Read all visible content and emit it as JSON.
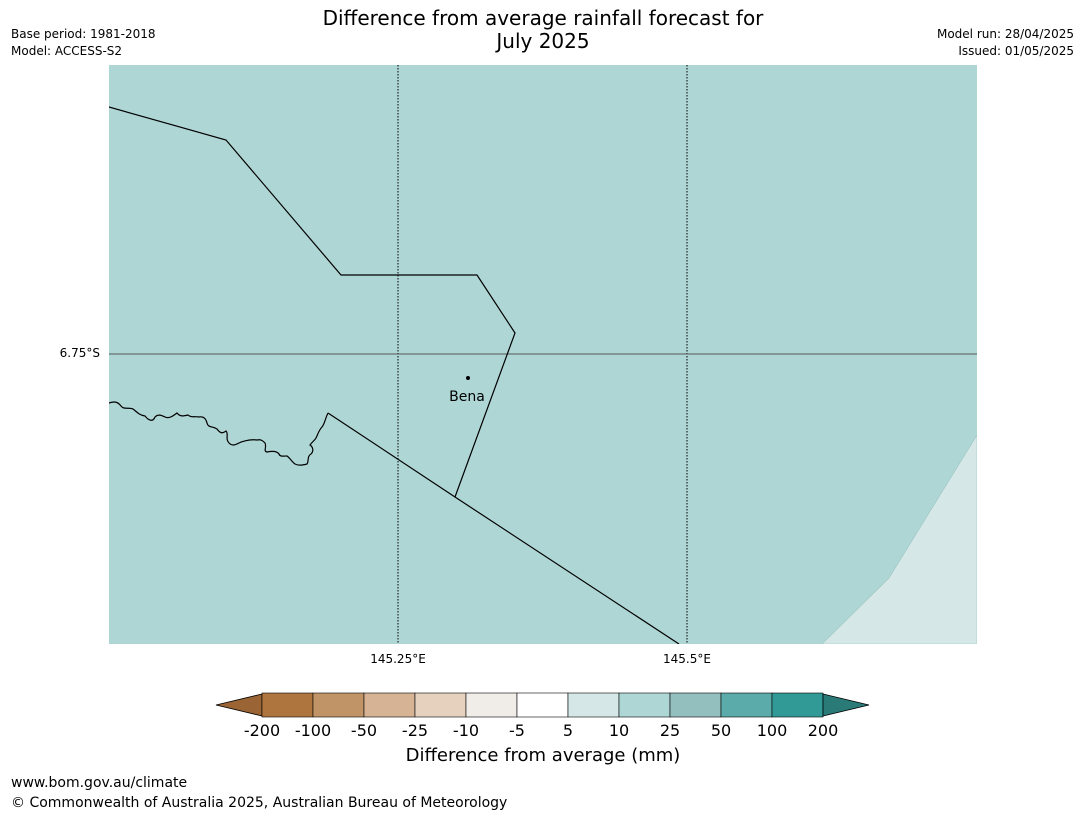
{
  "header": {
    "title_line1": "Difference from average rainfall forecast for",
    "title_line2": "July 2025",
    "base_period": "Base period: 1981-2018",
    "model": "Model: ACCESS-S2",
    "model_run": "Model run: 28/04/2025",
    "issued": "Issued: 01/05/2025"
  },
  "map": {
    "place_label": "Bena",
    "lat_label": "6.75°S",
    "lon_labels": [
      "145.25°E",
      "145.5°E"
    ],
    "fill_colors": {
      "5_to_10": "#d5e8e7",
      "10_to_25": "#aed6d5"
    }
  },
  "colorbar": {
    "label": "Difference from average (mm)",
    "ticks": [
      "-200",
      "-100",
      "-50",
      "-25",
      "-10",
      "-5",
      "5",
      "10",
      "25",
      "50",
      "100",
      "200"
    ],
    "colors": {
      "below_-200": "#9a6434",
      "-200_to_-100": "#ae763e",
      "-100_to_-50": "#c19468",
      "-50_to_-25": "#d5b394",
      "-25_to_-10": "#e6d1bf",
      "-10_to_-5": "#f0ece7",
      "-5_to_5": "#ffffff",
      "5_to_10": "#d5e8e7",
      "10_to_25": "#aed6d5",
      "25_to_50": "#93c0be",
      "50_to_100": "#5aabaa",
      "100_to_200": "#319a96",
      "above_200": "#2a7a78"
    }
  },
  "footer": {
    "url": "www.bom.gov.au/climate",
    "copyright": "© Commonwealth of Australia 2025, Australian Bureau of Meteorology"
  }
}
